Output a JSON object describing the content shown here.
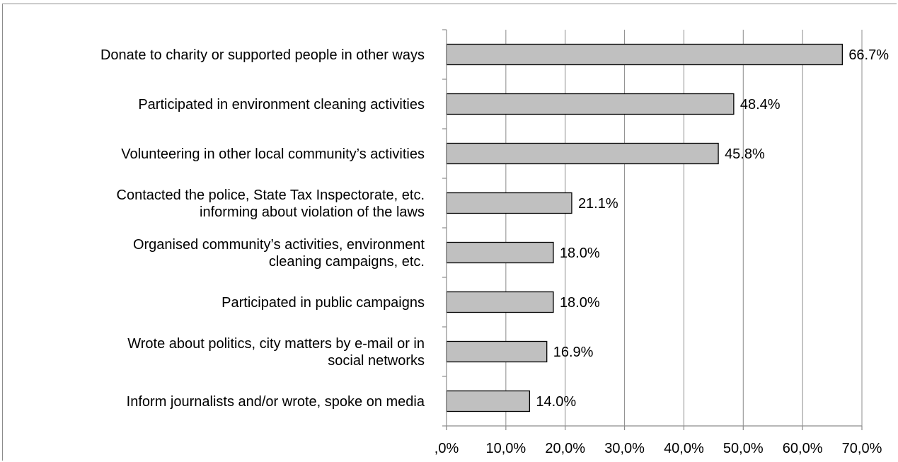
{
  "chart_data": {
    "type": "bar",
    "orientation": "horizontal",
    "categories": [
      [
        "Donate to charity or supported people in other ways"
      ],
      [
        "Participated in environment cleaning activities"
      ],
      [
        "Volunteering in other local community’s activities"
      ],
      [
        "Contacted the police, State Tax Inspectorate, etc.",
        "informing about violation of the laws"
      ],
      [
        "Organised community’s activities, environment",
        "cleaning campaigns, etc."
      ],
      [
        "Participated in public campaigns"
      ],
      [
        "Wrote about politics, city matters by e-mail or in",
        "social networks"
      ],
      [
        "Inform journalists and/or wrote, spoke on media"
      ]
    ],
    "values": [
      66.7,
      48.4,
      45.8,
      21.1,
      18.0,
      18.0,
      16.9,
      14.0
    ],
    "value_labels": [
      "66.7%",
      "48.4%",
      "45.8%",
      "21.1%",
      "18.0%",
      "18.0%",
      "16.9%",
      "14.0%"
    ],
    "xlim": [
      0,
      70
    ],
    "x_ticks": [
      0,
      10,
      20,
      30,
      40,
      50,
      60,
      70
    ],
    "x_tick_labels": [
      ",0%",
      "10,0%",
      "20,0%",
      "30,0%",
      "40,0%",
      "50,0%",
      "60,0%",
      "70,0%"
    ],
    "grid": "vertical",
    "bar_color": "#c0c0c0",
    "bar_edge_color": "#000000",
    "grid_color": "#8c8c8c",
    "title": "",
    "xlabel": "",
    "ylabel": ""
  }
}
